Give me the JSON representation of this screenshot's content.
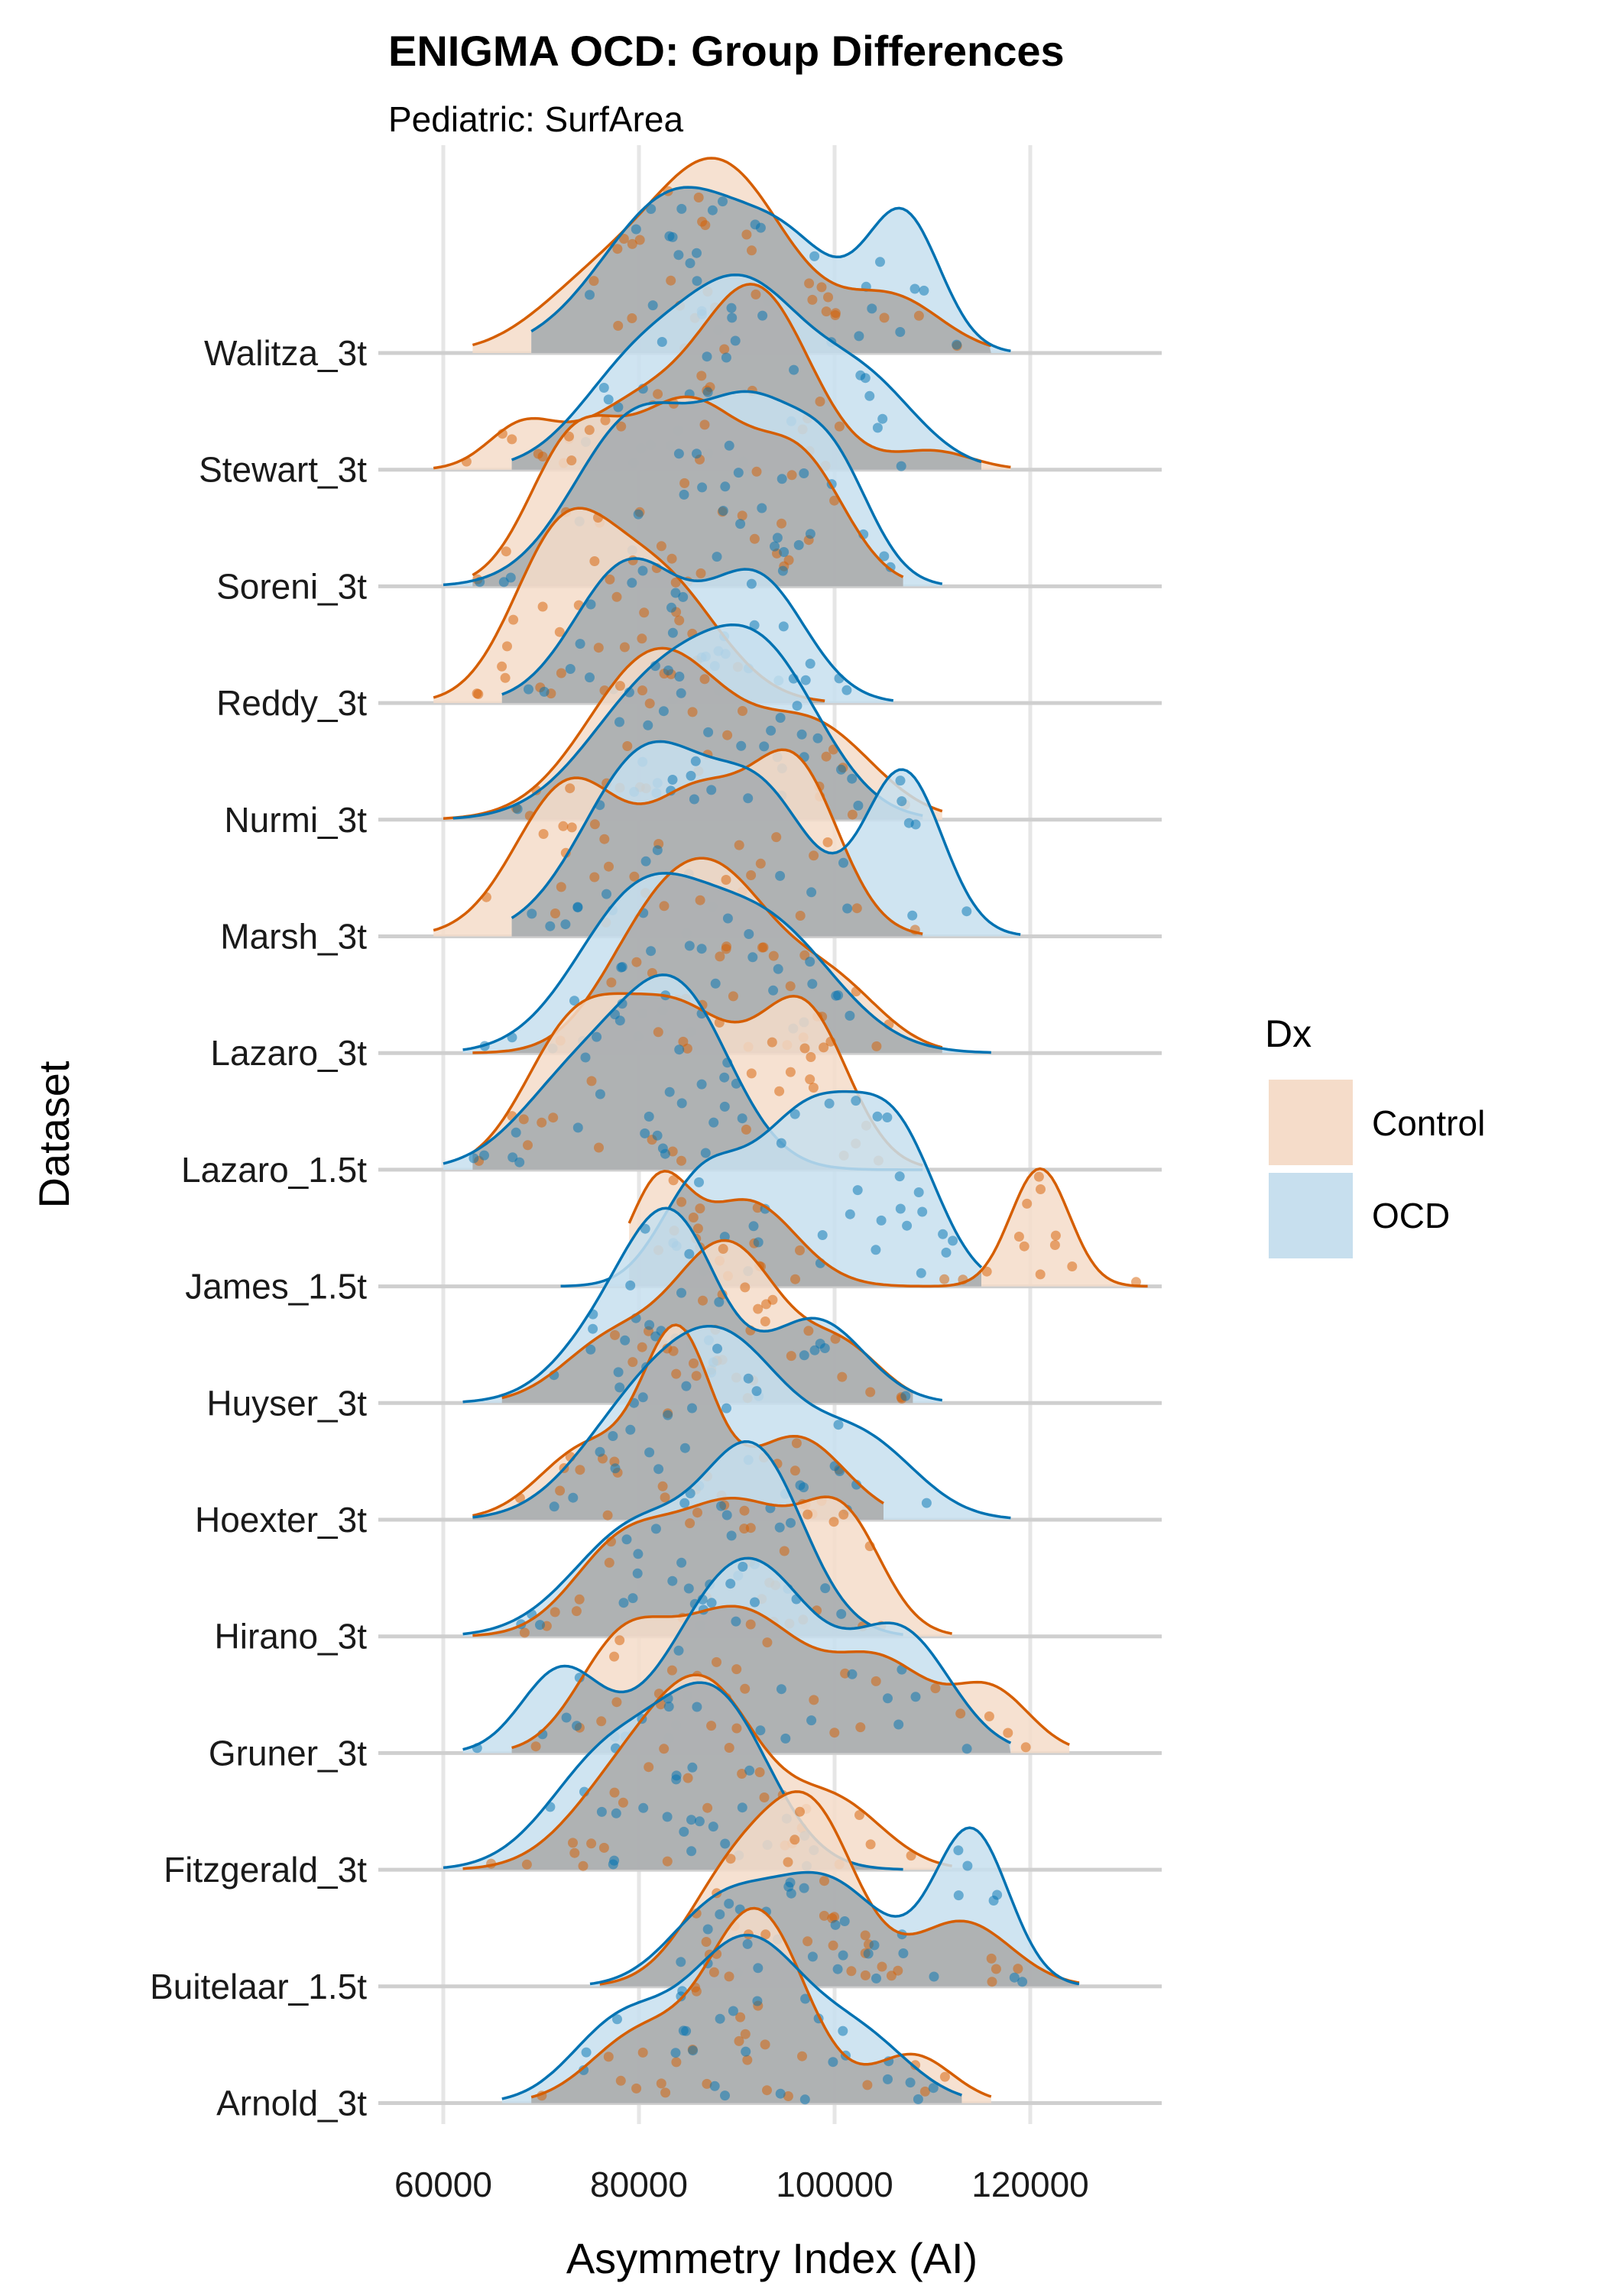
{
  "chart_data": {
    "type": "ridgeline-density",
    "title": "ENIGMA OCD: Group Differences",
    "subtitle": "Pediatric: SurfArea",
    "xlabel": "Asymmetry Index (AI)",
    "ylabel": "Dataset",
    "xlim": [
      53000,
      133000
    ],
    "x_ticks": [
      60000,
      80000,
      100000,
      120000
    ],
    "x_tick_labels": [
      "60000",
      "80000",
      "100000",
      "120000"
    ],
    "grid": true,
    "legend": {
      "title": "Dx",
      "position": "right",
      "entries": [
        {
          "name": "Control",
          "fill": "#f5dcc9",
          "line": "#d55e00"
        },
        {
          "name": "OCD",
          "fill": "#c7dfee",
          "line": "#0072b2"
        }
      ]
    },
    "categories": [
      "Walitza_3t",
      "Stewart_3t",
      "Soreni_3t",
      "Reddy_3t",
      "Nurmi_3t",
      "Marsh_3t",
      "Lazaro_3t",
      "Lazaro_1.5t",
      "James_1.5t",
      "Huyser_3t",
      "Hoexter_3t",
      "Hirano_3t",
      "Gruner_3t",
      "Fitzgerald_3t",
      "Buitelaar_1.5t",
      "Arnold_3t"
    ],
    "series": [
      {
        "name": "Control",
        "densities": [
          {
            "dataset": "Walitza_3t",
            "range": [
              63000,
              116000
            ],
            "peaks": [
              [
                75000,
                0.3,
                6000
              ],
              [
                88000,
                1.0,
                7000
              ],
              [
                106000,
                0.28,
                5000
              ]
            ]
          },
          {
            "dataset": "Stewart_3t",
            "range": [
              59000,
              118000
            ],
            "peaks": [
              [
                68000,
                0.22,
                3500
              ],
              [
                80000,
                0.35,
                6000
              ],
              [
                92000,
                0.95,
                5500
              ],
              [
                110000,
                0.1,
                4000
              ]
            ]
          },
          {
            "dataset": "Soreni_3t",
            "range": [
              63000,
              107000
            ],
            "peaks": [
              [
                73000,
                0.55,
                4500
              ],
              [
                85000,
                0.8,
                6500
              ],
              [
                97000,
                0.45,
                4500
              ]
            ]
          },
          {
            "dataset": "Reddy_3t",
            "range": [
              59000,
              99000
            ],
            "peaks": [
              [
                72000,
                0.95,
                5000
              ],
              [
                82000,
                0.75,
                6000
              ]
            ]
          },
          {
            "dataset": "Nurmi_3t",
            "range": [
              60000,
              111000
            ],
            "peaks": [
              [
                82000,
                0.95,
                7000
              ],
              [
                98000,
                0.5,
                6000
              ]
            ]
          },
          {
            "dataset": "Marsh_3t",
            "range": [
              59000,
              109000
            ],
            "peaks": [
              [
                73000,
                0.7,
                5500
              ],
              [
                86000,
                0.6,
                5000
              ],
              [
                96000,
                0.75,
                4500
              ]
            ]
          },
          {
            "dataset": "Lazaro_3t",
            "range": [
              63000,
              111000
            ],
            "peaks": [
              [
                80000,
                0.4,
                5000
              ],
              [
                88000,
                0.95,
                6000
              ],
              [
                100000,
                0.35,
                5000
              ]
            ]
          },
          {
            "dataset": "Lazaro_1.5t",
            "range": [
              63000,
              109000
            ],
            "peaks": [
              [
                73000,
                0.65,
                5000
              ],
              [
                84000,
                0.85,
                6500
              ],
              [
                97000,
                0.8,
                4500
              ]
            ]
          },
          {
            "dataset": "James_1.5t",
            "range": [
              79000,
              132000
            ],
            "peaks": [
              [
                82000,
                0.45,
                3000
              ],
              [
                91000,
                0.4,
                5000
              ],
              [
                121000,
                0.55,
                3000
              ]
            ]
          },
          {
            "dataset": "Huyser_3t",
            "range": [
              66000,
              108000
            ],
            "peaks": [
              [
                77000,
                0.35,
                5000
              ],
              [
                89000,
                0.95,
                5500
              ],
              [
                101000,
                0.3,
                4000
              ]
            ]
          },
          {
            "dataset": "Hoexter_3t",
            "range": [
              63000,
              105000
            ],
            "peaks": [
              [
                75000,
                0.4,
                5000
              ],
              [
                84000,
                0.95,
                3500
              ],
              [
                96000,
                0.45,
                5000
              ]
            ]
          },
          {
            "dataset": "Hirano_3t",
            "range": [
              63000,
              112000
            ],
            "peaks": [
              [
                78000,
                0.4,
                5000
              ],
              [
                90000,
                0.65,
                6500
              ],
              [
                101000,
                0.5,
                4000
              ]
            ]
          },
          {
            "dataset": "Gruner_3t",
            "range": [
              67000,
              124000
            ],
            "peaks": [
              [
                78000,
                0.45,
                4500
              ],
              [
                90000,
                0.7,
                7000
              ],
              [
                105000,
                0.4,
                5000
              ],
              [
                116000,
                0.3,
                4000
              ]
            ]
          },
          {
            "dataset": "Fitzgerald_3t",
            "range": [
              62000,
              112000
            ],
            "peaks": [
              [
                78000,
                0.4,
                5500
              ],
              [
                87000,
                0.9,
                5500
              ],
              [
                100000,
                0.35,
                5000
              ]
            ]
          },
          {
            "dataset": "Buitelaar_1.5t",
            "range": [
              76000,
              125000
            ],
            "peaks": [
              [
                90000,
                0.7,
                5000
              ],
              [
                98000,
                0.95,
                4500
              ],
              [
                113000,
                0.4,
                5000
              ]
            ]
          },
          {
            "dataset": "Arnold_3t",
            "range": [
              69000,
              116000
            ],
            "peaks": [
              [
                80000,
                0.35,
                5000
              ],
              [
                92000,
                1.0,
                5000
              ],
              [
                108000,
                0.25,
                4000
              ]
            ]
          }
        ]
      },
      {
        "name": "OCD",
        "densities": [
          {
            "dataset": "Walitza_3t",
            "range": [
              69000,
              118000
            ],
            "peaks": [
              [
                84000,
                0.85,
                7500
              ],
              [
                96000,
                0.4,
                5000
              ],
              [
                107000,
                0.72,
                3800
              ]
            ]
          },
          {
            "dataset": "Stewart_3t",
            "range": [
              67000,
              115000
            ],
            "peaks": [
              [
                80000,
                0.55,
                6000
              ],
              [
                91000,
                0.9,
                6000
              ],
              [
                103000,
                0.45,
                5500
              ]
            ]
          },
          {
            "dataset": "Soreni_3t",
            "range": [
              60000,
              111000
            ],
            "peaks": [
              [
                80000,
                0.75,
                6500
              ],
              [
                92000,
                0.65,
                5000
              ],
              [
                100000,
                0.45,
                4000
              ]
            ]
          },
          {
            "dataset": "Reddy_3t",
            "range": [
              66000,
              106000
            ],
            "peaks": [
              [
                79000,
                0.85,
                5500
              ],
              [
                92000,
                0.75,
                5000
              ]
            ]
          },
          {
            "dataset": "Nurmi_3t",
            "range": [
              61000,
              109000
            ],
            "peaks": [
              [
                82000,
                0.75,
                7000
              ],
              [
                93000,
                0.8,
                6000
              ]
            ]
          },
          {
            "dataset": "Marsh_3t",
            "range": [
              67000,
              119000
            ],
            "peaks": [
              [
                81000,
                0.85,
                6500
              ],
              [
                93000,
                0.55,
                5000
              ],
              [
                107000,
                0.75,
                4000
              ]
            ]
          },
          {
            "dataset": "Lazaro_3t",
            "range": [
              62000,
              116000
            ],
            "peaks": [
              [
                80000,
                0.85,
                6500
              ],
              [
                93000,
                0.7,
                7000
              ]
            ]
          },
          {
            "dataset": "Lazaro_1.5t",
            "range": [
              60000,
              109000
            ],
            "peaks": [
              [
                74000,
                0.5,
                6000
              ],
              [
                84000,
                0.9,
                5500
              ]
            ]
          },
          {
            "dataset": "James_1.5t",
            "range": [
              72000,
              115000
            ],
            "peaks": [
              [
                86000,
                0.4,
                4000
              ],
              [
                98000,
                0.85,
                6500
              ],
              [
                107000,
                0.45,
                4000
              ]
            ]
          },
          {
            "dataset": "Huyser_3t",
            "range": [
              62000,
              111000
            ],
            "peaks": [
              [
                78000,
                0.5,
                5500
              ],
              [
                84000,
                0.85,
                4500
              ],
              [
                98000,
                0.5,
                5000
              ]
            ]
          },
          {
            "dataset": "Hoexter_3t",
            "range": [
              63000,
              118000
            ],
            "peaks": [
              [
                79000,
                0.45,
                6000
              ],
              [
                89000,
                0.9,
                6500
              ],
              [
                103000,
                0.4,
                5500
              ]
            ]
          },
          {
            "dataset": "Hirano_3t",
            "range": [
              62000,
              107000
            ],
            "peaks": [
              [
                80000,
                0.55,
                6500
              ],
              [
                92000,
                0.85,
                5000
              ]
            ]
          },
          {
            "dataset": "Gruner_3t",
            "range": [
              62000,
              118000
            ],
            "peaks": [
              [
                72000,
                0.4,
                4000
              ],
              [
                91000,
                0.95,
                7000
              ],
              [
                107000,
                0.55,
                5000
              ]
            ]
          },
          {
            "dataset": "Fitzgerald_3t",
            "range": [
              60000,
              107000
            ],
            "peaks": [
              [
                77000,
                0.6,
                6000
              ],
              [
                88000,
                0.85,
                5500
              ]
            ]
          },
          {
            "dataset": "Buitelaar_1.5t",
            "range": [
              75000,
              125000
            ],
            "peaks": [
              [
                88000,
                0.45,
                5000
              ],
              [
                99000,
                0.65,
                6000
              ],
              [
                114000,
                0.95,
                3800
              ]
            ]
          },
          {
            "dataset": "Arnold_3t",
            "range": [
              66000,
              113000
            ],
            "peaks": [
              [
                78000,
                0.4,
                5000
              ],
              [
                91000,
                0.85,
                6000
              ],
              [
                103000,
                0.3,
                5000
              ]
            ]
          }
        ]
      }
    ]
  },
  "colors": {
    "control_line": "#d55e00",
    "ocd_line": "#0072b2",
    "overlap_fill": "#a9a9a9",
    "grid": "#e6e6e6",
    "baseline": "#cfcfcf"
  }
}
